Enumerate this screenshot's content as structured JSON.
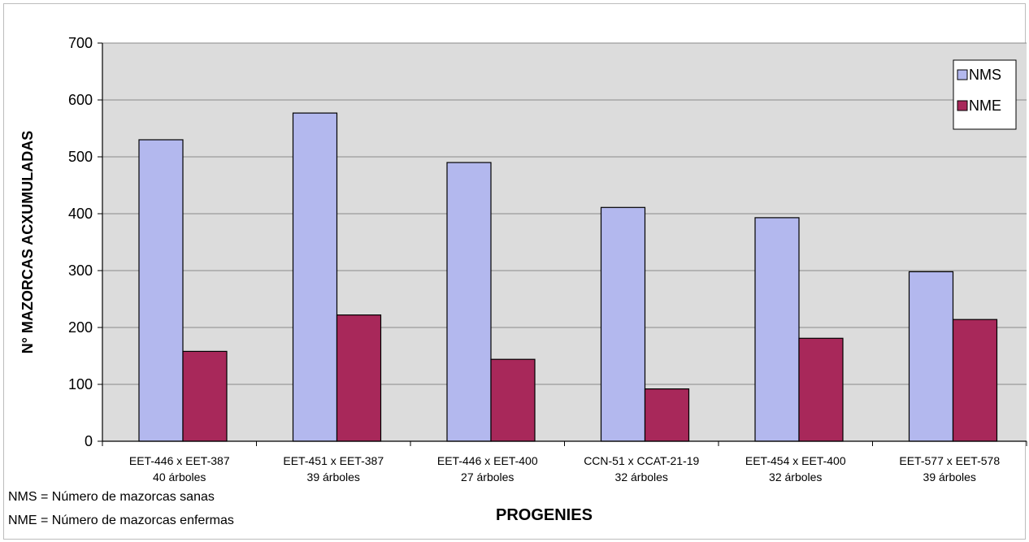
{
  "chart_data": {
    "type": "bar",
    "ylabel": "N° MAZORCAS ACXUMULADAS",
    "xlabel": "PROGENIES",
    "ylim": [
      0,
      700
    ],
    "yticks": [
      "0",
      "100",
      "200",
      "300",
      "400",
      "500",
      "600",
      "700"
    ],
    "grid": true,
    "legend_position": "top-right",
    "categories": [
      {
        "name": "EET-446 x EET-387",
        "subtitle": "40 árboles"
      },
      {
        "name": "EET-451 x EET-387",
        "subtitle": "39 árboles"
      },
      {
        "name": "EET-446 x EET-400",
        "subtitle": "27 árboles"
      },
      {
        "name": "CCN-51 x CCAT-21-19",
        "subtitle": "32 árboles"
      },
      {
        "name": "EET-454 x EET-400",
        "subtitle": "32 árboles"
      },
      {
        "name": "EET-577 x EET-578",
        "subtitle": "39 árboles"
      }
    ],
    "series": [
      {
        "name": "NMS",
        "color": "#b3b8ee",
        "values": [
          530,
          577,
          490,
          411,
          393,
          298
        ]
      },
      {
        "name": "NME",
        "color": "#a8285a",
        "values": [
          158,
          222,
          144,
          92,
          181,
          214
        ]
      }
    ]
  },
  "footnotes": [
    "NMS = Número de mazorcas sanas",
    "NME = Número de mazorcas enfermas"
  ]
}
